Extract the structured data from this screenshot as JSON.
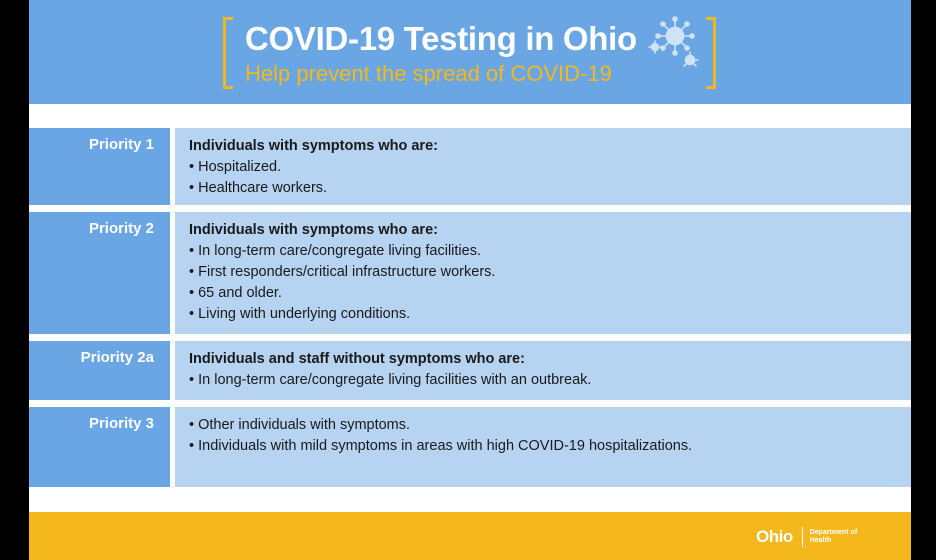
{
  "header": {
    "title": "COVID-19 Testing in Ohio",
    "subtitle": "Help prevent the spread of COVID-19",
    "icon": "virus-icon"
  },
  "priorities": [
    {
      "label": "Priority 1",
      "heading": "Individuals with symptoms who are:",
      "bullets": [
        "Hospitalized.",
        "Healthcare workers."
      ]
    },
    {
      "label": "Priority 2",
      "heading": "Individuals with symptoms who are:",
      "bullets": [
        "In long-term care/congregate living facilities.",
        "First responders/critical infrastructure workers.",
        "65 and older.",
        "Living with underlying conditions."
      ]
    },
    {
      "label": "Priority 2a",
      "heading": "Individuals and staff without symptoms who are:",
      "bullets": [
        "In long-term care/congregate living facilities with an outbreak."
      ]
    },
    {
      "label": "Priority 3",
      "heading": "",
      "bullets": [
        "Other individuals with symptoms.",
        "Individuals with mild symptoms in areas with high COVID-19 hospitalizations."
      ]
    }
  ],
  "footer": {
    "logo_wordmark": "Ohio",
    "logo_department": "Department of Health"
  },
  "colors": {
    "header_blue": "#6aa6e3",
    "content_blue": "#b6d3f2",
    "accent_yellow": "#f5b81c"
  }
}
